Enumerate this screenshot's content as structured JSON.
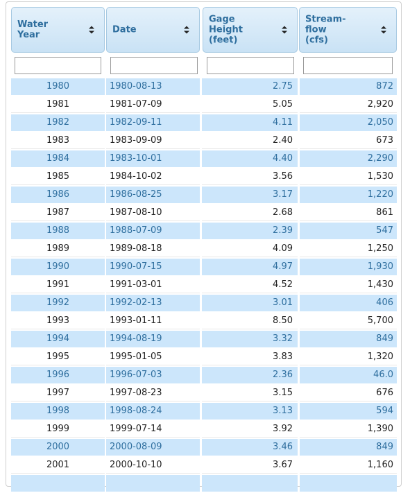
{
  "columns": [
    {
      "label": "Water\nYear"
    },
    {
      "label": "Date"
    },
    {
      "label": "Gage\nHeight\n(feet)"
    },
    {
      "label": "Stream-\nflow\n(cfs)"
    }
  ],
  "filters": [
    "",
    "",
    "",
    ""
  ],
  "rows": [
    [
      "1980",
      "1980-08-13",
      "2.75",
      "872"
    ],
    [
      "1981",
      "1981-07-09",
      "5.05",
      "2,920"
    ],
    [
      "1982",
      "1982-09-11",
      "4.11",
      "2,050"
    ],
    [
      "1983",
      "1983-09-09",
      "2.40",
      "673"
    ],
    [
      "1984",
      "1983-10-01",
      "4.40",
      "2,290"
    ],
    [
      "1985",
      "1984-10-02",
      "3.56",
      "1,530"
    ],
    [
      "1986",
      "1986-08-25",
      "3.17",
      "1,220"
    ],
    [
      "1987",
      "1987-08-10",
      "2.68",
      "861"
    ],
    [
      "1988",
      "1988-07-09",
      "2.39",
      "547"
    ],
    [
      "1989",
      "1989-08-18",
      "4.09",
      "1,250"
    ],
    [
      "1990",
      "1990-07-15",
      "4.97",
      "1,930"
    ],
    [
      "1991",
      "1991-03-01",
      "4.52",
      "1,430"
    ],
    [
      "1992",
      "1992-02-13",
      "3.01",
      "406"
    ],
    [
      "1993",
      "1993-01-11",
      "8.50",
      "5,700"
    ],
    [
      "1994",
      "1994-08-19",
      "3.32",
      "849"
    ],
    [
      "1995",
      "1995-01-05",
      "3.83",
      "1,320"
    ],
    [
      "1996",
      "1996-07-03",
      "2.36",
      "46.0"
    ],
    [
      "1997",
      "1997-08-23",
      "3.15",
      "676"
    ],
    [
      "1998",
      "1998-08-24",
      "3.13",
      "594"
    ],
    [
      "1999",
      "1999-07-14",
      "3.92",
      "1,390"
    ],
    [
      "2000",
      "2000-08-09",
      "3.46",
      "849"
    ],
    [
      "2001",
      "2000-10-10",
      "3.67",
      "1,160"
    ],
    [
      "",
      "",
      "",
      ""
    ]
  ],
  "colors": {
    "header_text": "#2e6e9e",
    "stripe": "#cce6fb",
    "header_border": "#a6c9e2"
  },
  "icons": {
    "sort": "sort-both-icon"
  }
}
